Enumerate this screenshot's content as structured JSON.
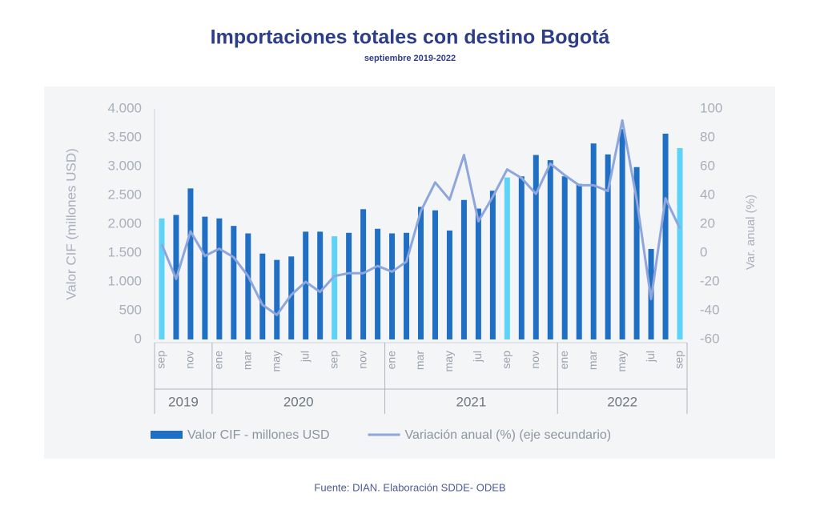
{
  "chart_data": {
    "type": "bar-line",
    "title": "Importaciones totales con destino Bogotá",
    "subtitle": "septiembre 2019-2022",
    "source": "Fuente: DIAN. Elaboración SDDE- ODEB",
    "y_label": "Valor CIF (millones USD)",
    "y2_label": "Var. anual (%)",
    "categories": [
      "sep",
      null,
      "nov",
      null,
      "ene",
      null,
      "mar",
      null,
      "may",
      null,
      "jul",
      null,
      "sep",
      null,
      "nov",
      null,
      "ene",
      null,
      "mar",
      null,
      "may",
      null,
      "jul",
      null,
      "sep",
      null,
      "nov",
      null,
      "ene",
      null,
      "mar",
      null,
      "may",
      null,
      "jul",
      null,
      "sep"
    ],
    "groups": [
      {
        "label": "2019",
        "span": 4
      },
      {
        "label": "2020",
        "span": 12
      },
      {
        "label": "2021",
        "span": 12
      },
      {
        "label": "2022",
        "span": 9
      }
    ],
    "series": [
      {
        "name": "Valor CIF - millones USD",
        "type": "bar",
        "color": "#1f6fc4",
        "colors": [
          "#5cd3f7",
          "#1f6fc4",
          "#1f6fc4",
          "#1f6fc4",
          "#1f6fc4",
          "#1f6fc4",
          "#1f6fc4",
          "#1f6fc4",
          "#1f6fc4",
          "#1f6fc4",
          "#1f6fc4",
          "#1f6fc4",
          "#5cd3f7",
          "#1f6fc4",
          "#1f6fc4",
          "#1f6fc4",
          "#1f6fc4",
          "#1f6fc4",
          "#1f6fc4",
          "#1f6fc4",
          "#1f6fc4",
          "#1f6fc4",
          "#1f6fc4",
          "#1f6fc4",
          "#5cd3f7",
          "#1f6fc4",
          "#1f6fc4",
          "#1f6fc4",
          "#1f6fc4",
          "#1f6fc4",
          "#1f6fc4",
          "#1f6fc4",
          "#1f6fc4",
          "#1f6fc4",
          "#1f6fc4",
          "#1f6fc4",
          "#5cd3f7"
        ],
        "values": [
          2100,
          2160,
          2620,
          2130,
          2100,
          1970,
          1840,
          1490,
          1380,
          1440,
          1870,
          1870,
          1790,
          1850,
          2260,
          1920,
          1840,
          1850,
          2300,
          2240,
          1890,
          2420,
          2270,
          2580,
          2810,
          2830,
          3200,
          3110,
          2830,
          2700,
          3400,
          3210,
          3650,
          2990,
          1570,
          3570,
          3320
        ]
      },
      {
        "name": "Variación anual (%) (eje secundario)",
        "type": "line",
        "color": "#8ea6db",
        "axis": "y2",
        "values": [
          6,
          -18,
          15,
          -2,
          3,
          -3,
          -16,
          -36,
          -43,
          -29,
          -20,
          -27,
          -16,
          -14,
          -14,
          -9,
          -13,
          -6,
          29,
          49,
          37,
          68,
          22,
          39,
          58,
          52,
          41,
          62,
          54,
          47,
          47,
          43,
          92,
          37,
          -32,
          38,
          17
        ]
      }
    ],
    "ylim": [
      0,
      4000
    ],
    "yticks": [
      0,
      500,
      {
        "value": 1000,
        "label": "1.000"
      },
      {
        "value": 1500,
        "label": "1.500"
      },
      {
        "value": 2000,
        "label": "2.000"
      },
      {
        "value": 2500,
        "label": "2.500"
      },
      {
        "value": 3000,
        "label": "3.000"
      },
      {
        "value": 3500,
        "label": "3.500"
      },
      {
        "value": 4000,
        "label": "4.000"
      }
    ],
    "y2lim": [
      -60,
      100
    ],
    "y2ticks": [
      -60,
      -40,
      -20,
      0,
      20,
      40,
      60,
      80,
      100
    ],
    "grid": false
  }
}
